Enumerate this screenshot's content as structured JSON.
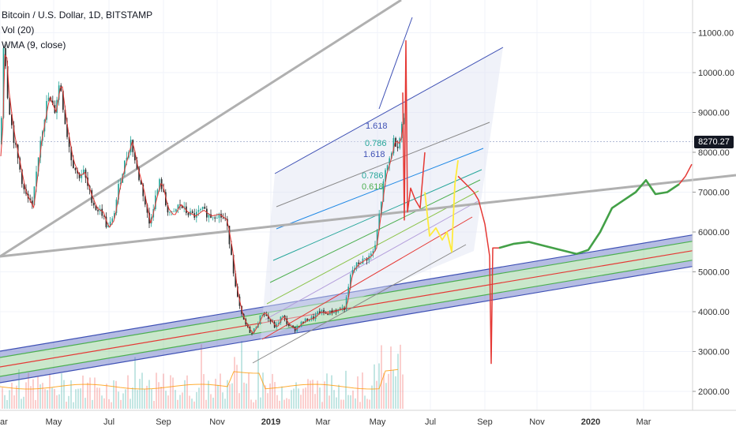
{
  "legend": {
    "symbol": "Bitcoin / U.S. Dollar, 1D, BITSTAMP",
    "volume": "Vol (20)",
    "wma": "WMA (9, close)"
  },
  "price_badge": "8270.27",
  "colors": {
    "candle_up": "#26a69a",
    "candle_down": "#2b2b2b",
    "wma": "#e53935",
    "channel_blue": "#3f51b5",
    "channel_green": "#4caf50",
    "projection_red": "#e53935",
    "projection_yellow": "#ffeb3b",
    "projection_green": "#43a047",
    "gray_line": "#b0b0b0"
  },
  "chart_data": {
    "type": "candlestick",
    "title": "Bitcoin / U.S. Dollar, 1D, BITSTAMP",
    "y_ticks": [
      "11000.00",
      "10000.00",
      "9000.00",
      "8000.00",
      "7000.00",
      "6000.00",
      "5000.00",
      "4000.00",
      "3000.00",
      "2000.00"
    ],
    "y_values": [
      11000,
      10000,
      9000,
      8000,
      7000,
      6000,
      5000,
      4000,
      3000,
      2000
    ],
    "x_ticks": [
      "ar",
      "May",
      "Jul",
      "Sep",
      "Nov",
      "2019",
      "Mar",
      "May",
      "Jul",
      "Sep",
      "Nov",
      "2020",
      "Mar"
    ],
    "bold_x_ticks": [
      "2019",
      "2020"
    ],
    "last_price": 8270.27,
    "fib_labels": [
      "1.618",
      "0.786",
      "1.618",
      "0.786",
      "0.618"
    ],
    "price_path": [
      [
        0,
        8200
      ],
      [
        4,
        11000
      ],
      [
        8,
        9600
      ],
      [
        15,
        8500
      ],
      [
        22,
        7800
      ],
      [
        30,
        7000
      ],
      [
        40,
        6600
      ],
      [
        50,
        8300
      ],
      [
        60,
        9400
      ],
      [
        68,
        9000
      ],
      [
        75,
        9800
      ],
      [
        82,
        8700
      ],
      [
        90,
        7800
      ],
      [
        98,
        7400
      ],
      [
        105,
        7500
      ],
      [
        112,
        7000
      ],
      [
        120,
        6600
      ],
      [
        128,
        6500
      ],
      [
        135,
        6100
      ],
      [
        142,
        6300
      ],
      [
        150,
        7200
      ],
      [
        158,
        7800
      ],
      [
        165,
        8300
      ],
      [
        172,
        7600
      ],
      [
        180,
        7000
      ],
      [
        188,
        6200
      ],
      [
        195,
        6800
      ],
      [
        202,
        7300
      ],
      [
        210,
        6600
      ],
      [
        218,
        6400
      ],
      [
        226,
        6700
      ],
      [
        235,
        6500
      ],
      [
        245,
        6400
      ],
      [
        255,
        6550
      ],
      [
        265,
        6400
      ],
      [
        275,
        6450
      ],
      [
        285,
        6300
      ],
      [
        292,
        5500
      ],
      [
        298,
        4500
      ],
      [
        305,
        3900
      ],
      [
        312,
        3600
      ],
      [
        318,
        3450
      ],
      [
        325,
        3700
      ],
      [
        332,
        4000
      ],
      [
        340,
        3800
      ],
      [
        348,
        3600
      ],
      [
        356,
        3900
      ],
      [
        365,
        3650
      ],
      [
        372,
        3550
      ],
      [
        380,
        3700
      ],
      [
        388,
        3800
      ],
      [
        396,
        3850
      ],
      [
        404,
        4000
      ],
      [
        412,
        3950
      ],
      [
        420,
        4000
      ],
      [
        428,
        4050
      ],
      [
        436,
        4100
      ],
      [
        444,
        5000
      ],
      [
        452,
        5200
      ],
      [
        460,
        5300
      ],
      [
        468,
        5400
      ],
      [
        474,
        5600
      ],
      [
        480,
        6500
      ],
      [
        486,
        7400
      ],
      [
        492,
        7800
      ],
      [
        498,
        8300
      ],
      [
        504,
        8200
      ],
      [
        510,
        9000
      ],
      [
        514,
        7900
      ]
    ],
    "projection_red": [
      [
        510,
        9500
      ],
      [
        512,
        6300
      ],
      [
        514,
        10800
      ],
      [
        516,
        6500
      ],
      [
        520,
        7100
      ],
      [
        526,
        6800
      ],
      [
        532,
        6600
      ],
      [
        538,
        8000
      ]
    ],
    "projection_yellow": [
      [
        538,
        7000
      ],
      [
        544,
        5900
      ],
      [
        552,
        6100
      ],
      [
        560,
        5800
      ],
      [
        566,
        6000
      ],
      [
        572,
        5500
      ],
      [
        576,
        7200
      ],
      [
        580,
        7800
      ]
    ],
    "projection_red_2": [
      [
        580,
        7400
      ],
      [
        590,
        7200
      ],
      [
        600,
        7000
      ],
      [
        606,
        6800
      ],
      [
        614,
        6200
      ],
      [
        620,
        5400
      ],
      [
        622,
        2700
      ],
      [
        624,
        5600
      ],
      [
        632,
        5600
      ]
    ],
    "projection_green": [
      [
        632,
        5600
      ],
      [
        650,
        5700
      ],
      [
        670,
        5750
      ],
      [
        690,
        5650
      ],
      [
        710,
        5550
      ],
      [
        730,
        5450
      ],
      [
        745,
        5550
      ],
      [
        760,
        6000
      ],
      [
        775,
        6600
      ],
      [
        790,
        6800
      ],
      [
        805,
        7000
      ],
      [
        818,
        7300
      ],
      [
        830,
        6950
      ],
      [
        845,
        7000
      ],
      [
        860,
        7200
      ]
    ],
    "projection_red_3": [
      [
        860,
        7200
      ],
      [
        868,
        7400
      ],
      [
        876,
        7700
      ]
    ]
  }
}
